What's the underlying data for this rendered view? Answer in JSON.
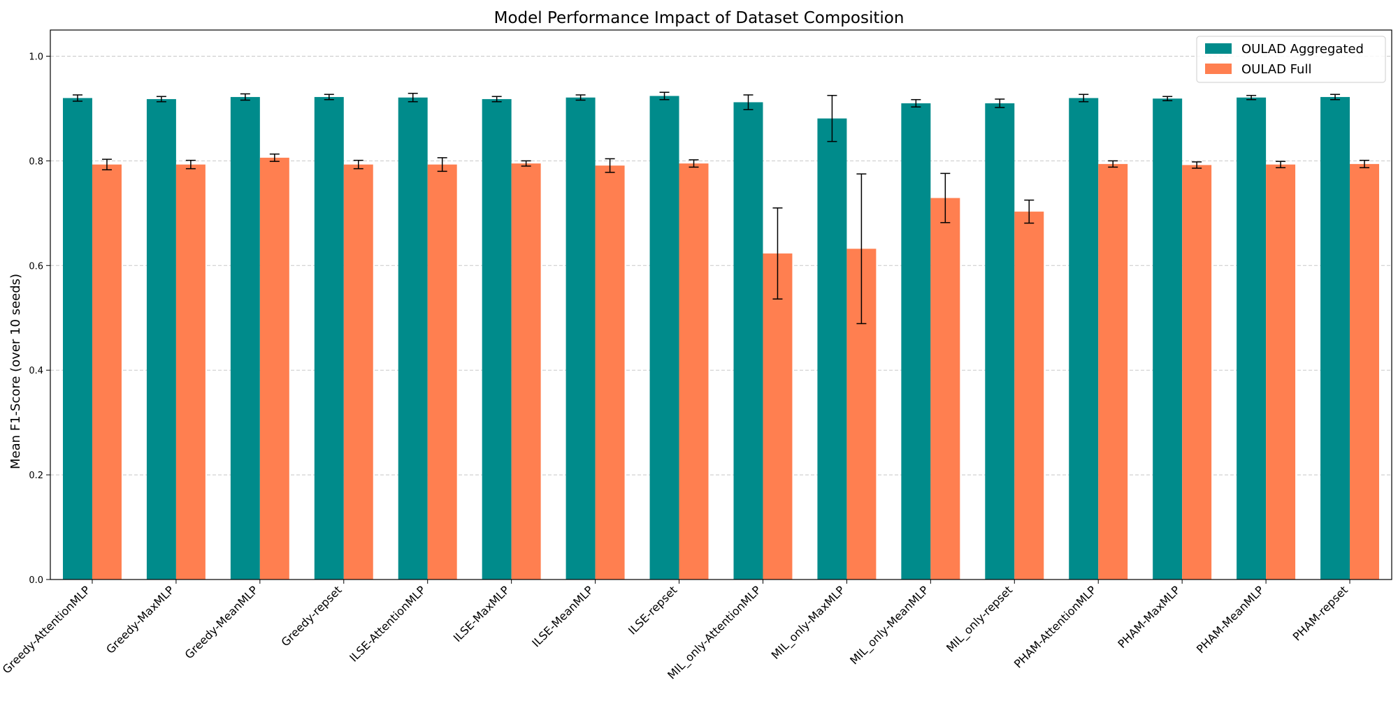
{
  "chart_data": {
    "type": "bar",
    "title": "Model Performance Impact of Dataset Composition",
    "xlabel": "",
    "ylabel": "Mean F1-Score (over 10 seeds)",
    "ylim": [
      0,
      1.05
    ],
    "yticks": [
      "0.0",
      "0.2",
      "0.4",
      "0.6",
      "0.8",
      "1.0"
    ],
    "grid": "y-dashed",
    "legend_position": "top-right",
    "categories": [
      "Greedy-AttentionMLP",
      "Greedy-MaxMLP",
      "Greedy-MeanMLP",
      "Greedy-repset",
      "ILSE-AttentionMLP",
      "ILSE-MaxMLP",
      "ILSE-MeanMLP",
      "ILSE-repset",
      "MIL_only-AttentionMLP",
      "MIL_only-MaxMLP",
      "MIL_only-MeanMLP",
      "MIL_only-repset",
      "PHAM-AttentionMLP",
      "PHAM-MaxMLP",
      "PHAM-MeanMLP",
      "PHAM-repset"
    ],
    "series": [
      {
        "name": "OULAD Aggregated",
        "color": "#008b8b",
        "values": [
          0.92,
          0.918,
          0.922,
          0.922,
          0.921,
          0.918,
          0.921,
          0.924,
          0.912,
          0.881,
          0.91,
          0.91,
          0.92,
          0.919,
          0.921,
          0.922
        ],
        "errors": [
          0.006,
          0.005,
          0.006,
          0.005,
          0.008,
          0.005,
          0.005,
          0.007,
          0.014,
          0.044,
          0.007,
          0.008,
          0.007,
          0.004,
          0.004,
          0.005
        ]
      },
      {
        "name": "OULAD Full",
        "color": "#ff7f50",
        "values": [
          0.793,
          0.793,
          0.806,
          0.793,
          0.793,
          0.795,
          0.791,
          0.795,
          0.623,
          0.632,
          0.729,
          0.703,
          0.794,
          0.792,
          0.793,
          0.794
        ],
        "errors": [
          0.01,
          0.008,
          0.007,
          0.008,
          0.013,
          0.005,
          0.013,
          0.007,
          0.087,
          0.143,
          0.047,
          0.022,
          0.006,
          0.006,
          0.006,
          0.007
        ]
      }
    ]
  }
}
